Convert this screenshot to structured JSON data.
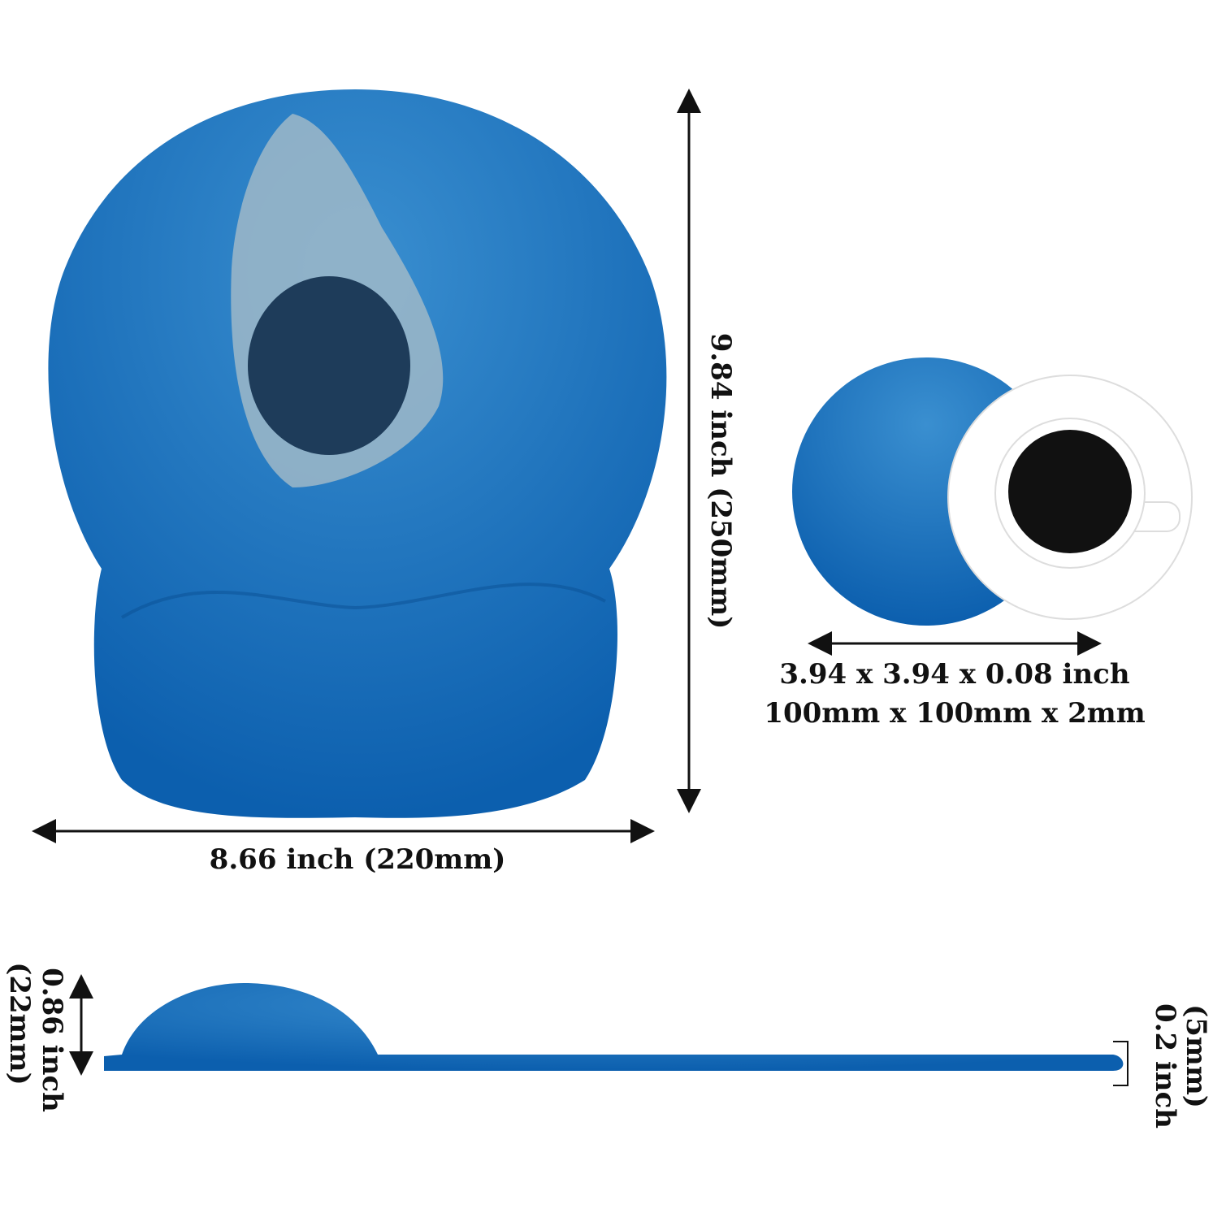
{
  "pad": {
    "height_label": "9.84 inch (250mm)",
    "width_label": "8.66 inch (220mm)"
  },
  "coaster": {
    "size_inch": "3.94 x 3.94 x 0.08 inch",
    "size_mm": "100mm x 100mm x 2mm"
  },
  "side": {
    "rest_inch": "0.86 inch",
    "rest_mm": "(22mm)",
    "pad_inch": "0.2 inch",
    "pad_mm": "(5mm)"
  }
}
